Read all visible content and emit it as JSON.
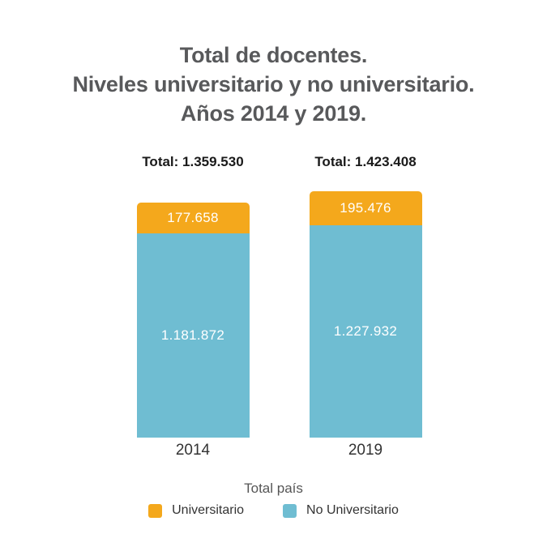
{
  "title": {
    "lines": [
      "Total de docentes.",
      "Niveles universitario y no universitario.",
      "Años 2014 y 2019."
    ]
  },
  "chart_data": {
    "type": "bar",
    "subtype": "stacked",
    "categories": [
      "2014",
      "2019"
    ],
    "series": [
      {
        "name": "Universitario",
        "color": "#F4A81C",
        "values": [
          177658,
          195476
        ],
        "value_labels": [
          "177.658",
          "195.476"
        ]
      },
      {
        "name": "No Universitario",
        "color": "#6FBDD2",
        "values": [
          1181872,
          1227932
        ],
        "value_labels": [
          "1.181.872",
          "1.227.932"
        ]
      }
    ],
    "totals": {
      "values": [
        1359530,
        1423408
      ],
      "labels": [
        "Total: 1.359.530",
        "Total: 1.423.408"
      ]
    },
    "legend_title": "Total país",
    "legend_position": "bottom",
    "grid": false,
    "ylim": [
      0,
      1423408
    ],
    "value_label_color": "#FFFFFF"
  },
  "colors": {
    "title_text": "#58595B",
    "total_text": "#1A1A1A",
    "axis_text": "#333333",
    "legend_title_text": "#555555",
    "background": "#FFFFFF"
  }
}
